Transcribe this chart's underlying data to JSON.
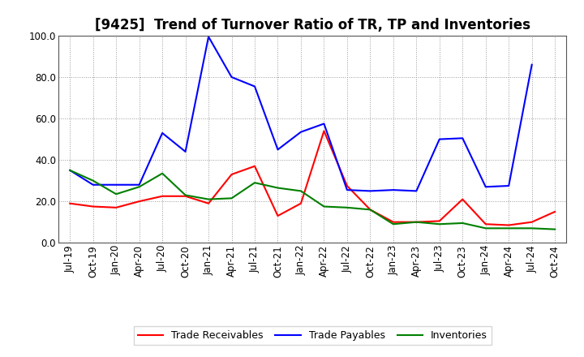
{
  "title": "[9425]  Trend of Turnover Ratio of TR, TP and Inventories",
  "xlabels": [
    "Jul-19",
    "Oct-19",
    "Jan-20",
    "Apr-20",
    "Jul-20",
    "Oct-20",
    "Jan-21",
    "Apr-21",
    "Jul-21",
    "Oct-21",
    "Jan-22",
    "Apr-22",
    "Jul-22",
    "Oct-22",
    "Jan-23",
    "Apr-23",
    "Jul-23",
    "Oct-23",
    "Jan-24",
    "Apr-24",
    "Jul-24",
    "Oct-24"
  ],
  "trade_receivables": [
    19.0,
    17.5,
    17.0,
    20.0,
    22.5,
    22.5,
    19.0,
    33.0,
    37.0,
    13.0,
    19.0,
    54.0,
    27.5,
    16.0,
    10.0,
    10.0,
    10.5,
    21.0,
    9.0,
    8.5,
    10.0,
    15.0
  ],
  "trade_payables": [
    35.0,
    28.0,
    28.0,
    28.0,
    53.0,
    44.0,
    99.5,
    80.0,
    75.5,
    45.0,
    53.5,
    57.5,
    25.5,
    25.0,
    25.5,
    25.0,
    50.0,
    50.5,
    27.0,
    27.5,
    86.0,
    null
  ],
  "inventories": [
    35.0,
    30.0,
    23.5,
    27.0,
    33.5,
    23.0,
    21.0,
    21.5,
    29.0,
    26.5,
    25.0,
    17.5,
    17.0,
    16.0,
    9.0,
    10.0,
    9.0,
    9.5,
    7.0,
    7.0,
    7.0,
    6.5
  ],
  "ylim": [
    0.0,
    100.0
  ],
  "yticks": [
    0.0,
    20.0,
    40.0,
    60.0,
    80.0,
    100.0
  ],
  "tr_color": "#ff0000",
  "tp_color": "#0000ff",
  "inv_color": "#008000",
  "bg_color": "#ffffff",
  "plot_bg_color": "#ffffff",
  "grid_color": "#999999",
  "title_fontsize": 12,
  "tick_fontsize": 8.5,
  "legend_labels": [
    "Trade Receivables",
    "Trade Payables",
    "Inventories"
  ],
  "linewidth": 1.5
}
